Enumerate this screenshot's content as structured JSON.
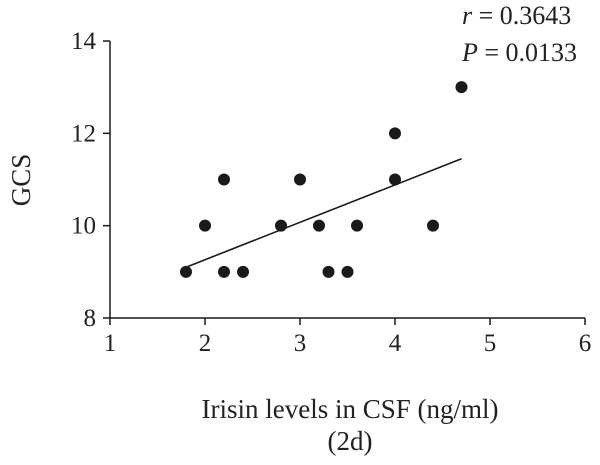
{
  "chart_data": {
    "type": "scatter",
    "title": "",
    "xlabel": "Irisin levels in CSF (ng/ml)",
    "xlabel_sub": "(2d)",
    "ylabel": "GCS",
    "xlim": [
      1,
      6
    ],
    "ylim": [
      8,
      14
    ],
    "xticks": [
      "1",
      "2",
      "3",
      "4",
      "5",
      "6"
    ],
    "yticks": [
      "8",
      "10",
      "12",
      "14"
    ],
    "points": [
      {
        "x": 1.8,
        "y": 9
      },
      {
        "x": 2.0,
        "y": 10
      },
      {
        "x": 2.2,
        "y": 11
      },
      {
        "x": 2.2,
        "y": 9
      },
      {
        "x": 2.4,
        "y": 9
      },
      {
        "x": 2.8,
        "y": 10
      },
      {
        "x": 3.0,
        "y": 11
      },
      {
        "x": 3.2,
        "y": 10
      },
      {
        "x": 3.3,
        "y": 9
      },
      {
        "x": 3.5,
        "y": 9
      },
      {
        "x": 3.6,
        "y": 10
      },
      {
        "x": 4.0,
        "y": 12
      },
      {
        "x": 4.0,
        "y": 11
      },
      {
        "x": 4.4,
        "y": 10
      },
      {
        "x": 4.7,
        "y": 13
      }
    ],
    "trendline": {
      "x": [
        1.8,
        4.7
      ],
      "y": [
        9.1,
        11.45
      ]
    },
    "stats": {
      "r_symbol": "r",
      "r_text": " = 0.3643",
      "p_symbol": "P",
      "p_text": " = 0.0133"
    },
    "grid": false,
    "colors": {
      "marker": "#1a1a1a",
      "axis": "#1a1a1a",
      "line": "#1a1a1a"
    }
  }
}
